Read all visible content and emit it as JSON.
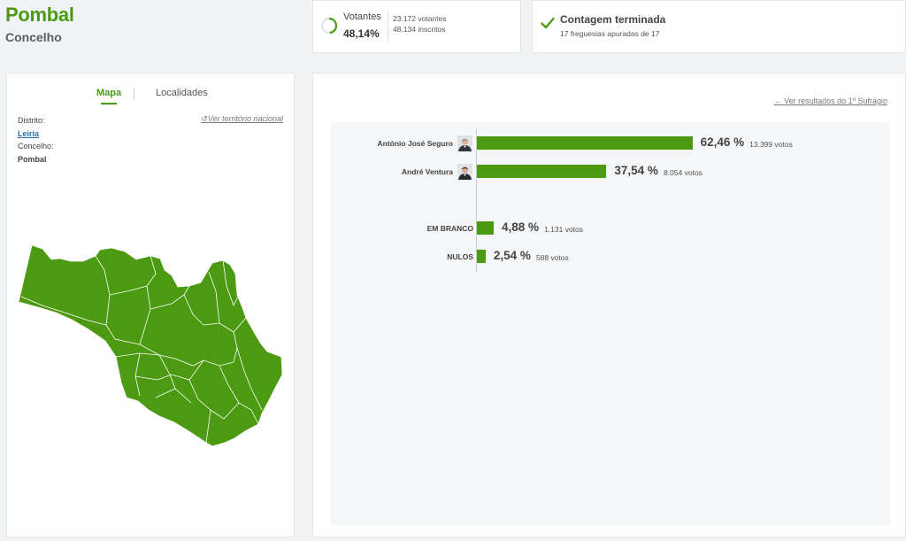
{
  "header": {
    "title": "Pombal",
    "subtitle": "Concelho"
  },
  "turnout": {
    "label": "Votantes",
    "percent": "48,14%",
    "percent_value": 48.14,
    "voters": "23.172 votantes",
    "registered": "48.134 inscritos"
  },
  "status": {
    "title": "Contagem terminada",
    "subtitle": "17 freguesias apuradas de 17"
  },
  "map_panel": {
    "tabs": [
      {
        "label": "Mapa"
      },
      {
        "label": "Localidades"
      }
    ],
    "district_label": "Distrito:",
    "district_value": "Leiria",
    "municipality_label": "Concelho:",
    "municipality_value": "Pombal",
    "national_link": "Ver território nacional"
  },
  "results": {
    "back_link": "Ver resultados do 1º Sufrágio",
    "candidates": [
      {
        "name": "António José Seguro",
        "percent": "62,46 %",
        "percent_value": 62.46,
        "votes": "13.399 votos"
      },
      {
        "name": "André Ventura",
        "percent": "37,54 %",
        "percent_value": 37.54,
        "votes": "8.054 votos"
      }
    ],
    "other": [
      {
        "name": "EM BRANCO",
        "percent": "4,88 %",
        "percent_value": 4.88,
        "votes": "1.131 votos"
      },
      {
        "name": "NULOS",
        "percent": "2,54 %",
        "percent_value": 2.54,
        "votes": "588 votos"
      }
    ]
  },
  "colors": {
    "accent": "#4c9a12",
    "map_fill": "#4c9a12",
    "link": "#2a6db0"
  }
}
